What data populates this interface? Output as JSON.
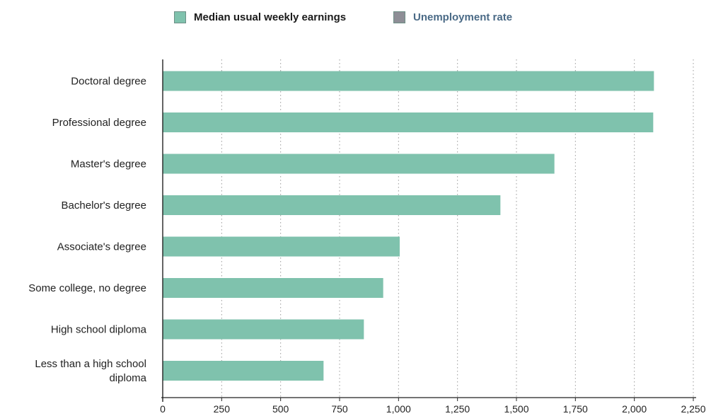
{
  "legend": [
    {
      "label": "Median usual weekly earnings",
      "color": "#7fc2ad",
      "text_color": "#1a1a1a"
    },
    {
      "label": "Unemployment rate",
      "color": "#8e8e96",
      "text_color": "#4a6a86"
    }
  ],
  "chart_data": {
    "type": "bar",
    "orientation": "horizontal",
    "categories": [
      "Doctoral degree",
      "Professional degree",
      "Master's degree",
      "Bachelor's degree",
      "Associate's degree",
      "Some college, no degree",
      "High school diploma",
      "Less than a high school diploma"
    ],
    "category_lines": [
      [
        "Doctoral degree"
      ],
      [
        "Professional degree"
      ],
      [
        "Master's degree"
      ],
      [
        "Bachelor's degree"
      ],
      [
        "Associate's degree"
      ],
      [
        "Some college, no degree"
      ],
      [
        "High school diploma"
      ],
      [
        "Less than a high school",
        "diploma"
      ]
    ],
    "series": [
      {
        "name": "Median usual weekly earnings",
        "values": [
          2083,
          2080,
          1661,
          1432,
          1005,
          935,
          853,
          682
        ],
        "color": "#7fc2ad"
      }
    ],
    "xlim": [
      0,
      2250
    ],
    "xticks": [
      0,
      250,
      500,
      750,
      1000,
      1250,
      1500,
      1750,
      2000,
      2250
    ],
    "xtick_labels": [
      "0",
      "250",
      "500",
      "750",
      "1,000",
      "1,250",
      "1,500",
      "1,750",
      "2,000",
      "2,250"
    ],
    "grid": "vertical dotted",
    "legend_position": "top",
    "title": "",
    "xlabel": "",
    "ylabel": ""
  }
}
